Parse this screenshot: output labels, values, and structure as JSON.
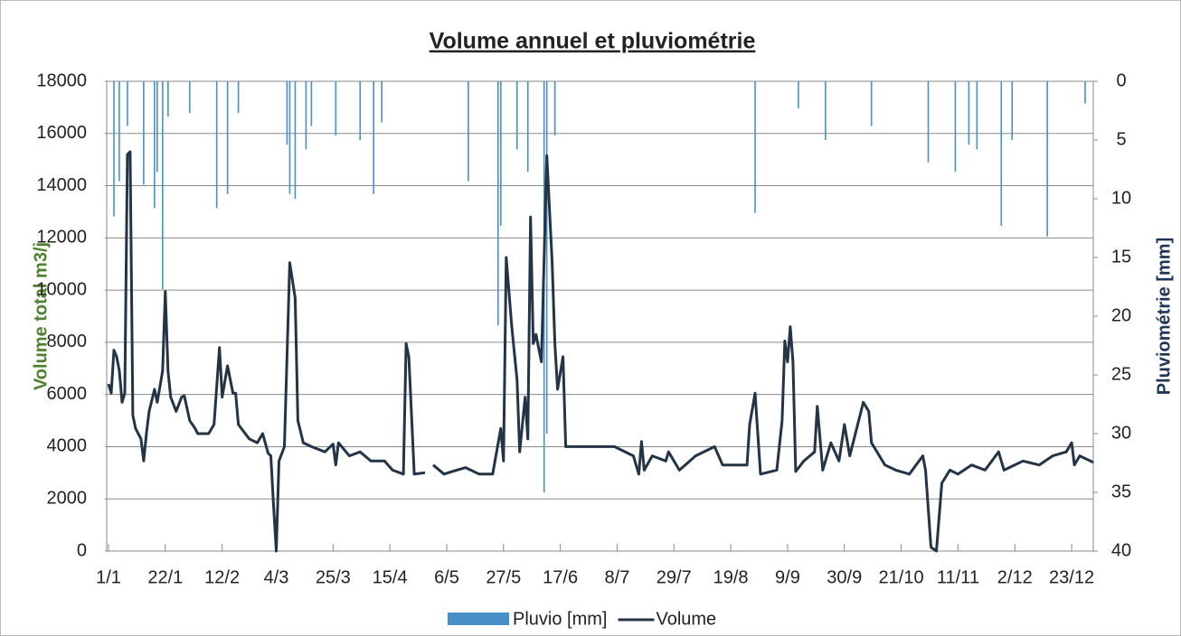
{
  "chart_data": {
    "type": "bar-line",
    "title": "Volume annuel et pluviométrie",
    "y_label": "Volume total m3/j",
    "y2_label": "Pluviométrie [mm]",
    "xlim": [
      1,
      365
    ],
    "xticks": [
      {
        "value": 1,
        "label": "1/1"
      },
      {
        "value": 22,
        "label": "22/1"
      },
      {
        "value": 43,
        "label": "12/2"
      },
      {
        "value": 63,
        "label": "4/3"
      },
      {
        "value": 84,
        "label": "25/3"
      },
      {
        "value": 105,
        "label": "15/4"
      },
      {
        "value": 126,
        "label": "6/5"
      },
      {
        "value": 147,
        "label": "27/5"
      },
      {
        "value": 168,
        "label": "17/6"
      },
      {
        "value": 189,
        "label": "8/7"
      },
      {
        "value": 210,
        "label": "29/7"
      },
      {
        "value": 231,
        "label": "19/8"
      },
      {
        "value": 252,
        "label": "9/9"
      },
      {
        "value": 273,
        "label": "30/9"
      },
      {
        "value": 294,
        "label": "21/10"
      },
      {
        "value": 315,
        "label": "11/11"
      },
      {
        "value": 336,
        "label": "2/12"
      },
      {
        "value": 357,
        "label": "23/12"
      }
    ],
    "ylim": [
      0,
      18000
    ],
    "yticks": [
      0,
      2000,
      4000,
      6000,
      8000,
      10000,
      12000,
      14000,
      16000,
      18000
    ],
    "y2lim": [
      0,
      40
    ],
    "y2ticks": [
      0,
      5,
      10,
      15,
      20,
      25,
      30,
      35,
      40
    ],
    "y2_inverted": true,
    "grid": true,
    "legend": "bottom",
    "series": [
      {
        "name": "Pluvio [mm]",
        "type": "bar",
        "axis": "y2",
        "color": "#4a90c8",
        "x": [
          3,
          5,
          8,
          14,
          18,
          19,
          21,
          23,
          31,
          41,
          45,
          49,
          67,
          68,
          70,
          74,
          76,
          85,
          94,
          99,
          102,
          134,
          145,
          146,
          152,
          156,
          162,
          163,
          166,
          240,
          256,
          266,
          283,
          304,
          314,
          319,
          322,
          331,
          335,
          348,
          362
        ],
        "values": [
          11.5,
          8.5,
          3.8,
          8.8,
          10.8,
          7.7,
          17.7,
          3,
          2.7,
          10.8,
          9.6,
          2.7,
          5.4,
          9.6,
          10,
          5.8,
          3.8,
          4.6,
          5,
          9.6,
          3.5,
          8.5,
          20.8,
          12.3,
          5.8,
          7.7,
          35,
          30,
          4.6,
          11.2,
          2.3,
          5,
          3.8,
          6.9,
          7.7,
          5.4,
          5.8,
          12.3,
          5,
          13.2,
          1.9
        ]
      },
      {
        "name": "Volume",
        "type": "line",
        "axis": "y",
        "color": "#243447",
        "x": [
          1,
          2,
          3,
          4,
          5,
          6,
          7,
          8,
          9,
          10,
          11,
          13,
          14,
          15,
          16,
          18,
          19,
          21,
          22,
          23,
          24,
          26,
          28,
          29,
          31,
          33,
          34,
          38,
          40,
          42,
          43,
          45,
          47,
          48,
          49,
          53,
          56,
          58,
          60,
          61,
          62,
          63,
          64,
          66,
          68,
          70,
          71,
          73,
          76,
          81,
          84,
          85,
          86,
          90,
          94,
          98,
          103,
          106,
          110,
          111,
          112,
          114,
          118,
          120,
          121,
          125,
          128,
          133,
          138,
          143,
          146,
          147,
          148,
          150,
          152,
          153,
          155,
          156,
          157,
          158,
          159,
          161,
          163,
          165,
          166,
          167,
          169,
          170,
          175,
          182,
          188,
          195,
          197,
          198,
          199,
          202,
          207,
          208,
          212,
          218,
          225,
          228,
          237,
          238,
          240,
          242,
          248,
          250,
          251,
          252,
          253,
          254,
          255,
          258,
          262,
          263,
          265,
          268,
          271,
          273,
          275,
          280,
          282,
          283,
          288,
          292,
          297,
          302,
          303,
          305,
          307,
          309,
          312,
          315,
          320,
          325,
          330,
          332,
          339,
          345,
          350,
          355,
          357,
          358,
          360,
          365
        ],
        "values": [
          6400,
          6050,
          7700,
          7450,
          6900,
          5700,
          6050,
          15200,
          15300,
          5200,
          4700,
          4300,
          3450,
          4500,
          5350,
          6200,
          5700,
          6900,
          9950,
          6900,
          5900,
          5350,
          5900,
          5950,
          5000,
          4700,
          4500,
          4500,
          4850,
          7800,
          5900,
          7100,
          6050,
          6050,
          4850,
          4300,
          4150,
          4500,
          3750,
          3650,
          1750,
          0,
          3450,
          4000,
          11050,
          9700,
          5000,
          4150,
          4000,
          3800,
          4100,
          3300,
          4150,
          3650,
          3800,
          3450,
          3450,
          3100,
          2950,
          7950,
          7450,
          2950,
          3000,
          null,
          3300,
          2950,
          3050,
          3200,
          2950,
          2950,
          4700,
          3450,
          11250,
          8650,
          6550,
          3800,
          5900,
          4300,
          12800,
          7950,
          8300,
          7250,
          15150,
          11050,
          7950,
          6200,
          7450,
          4000,
          4000,
          4000,
          4000,
          3650,
          2950,
          4200,
          3100,
          3650,
          3450,
          3800,
          3100,
          3650,
          4000,
          3300,
          3300,
          4850,
          6050,
          2950,
          3100,
          5000,
          8050,
          7250,
          8600,
          7250,
          3050,
          3450,
          3800,
          5550,
          3100,
          4150,
          3450,
          4850,
          3650,
          5700,
          5350,
          4150,
          3300,
          3100,
          2950,
          3650,
          3100,
          150,
          0,
          2600,
          3100,
          2950,
          3300,
          3100,
          3800,
          3100,
          3450,
          3300,
          3650,
          3800,
          4150,
          3300,
          3650,
          3400
        ]
      }
    ]
  }
}
